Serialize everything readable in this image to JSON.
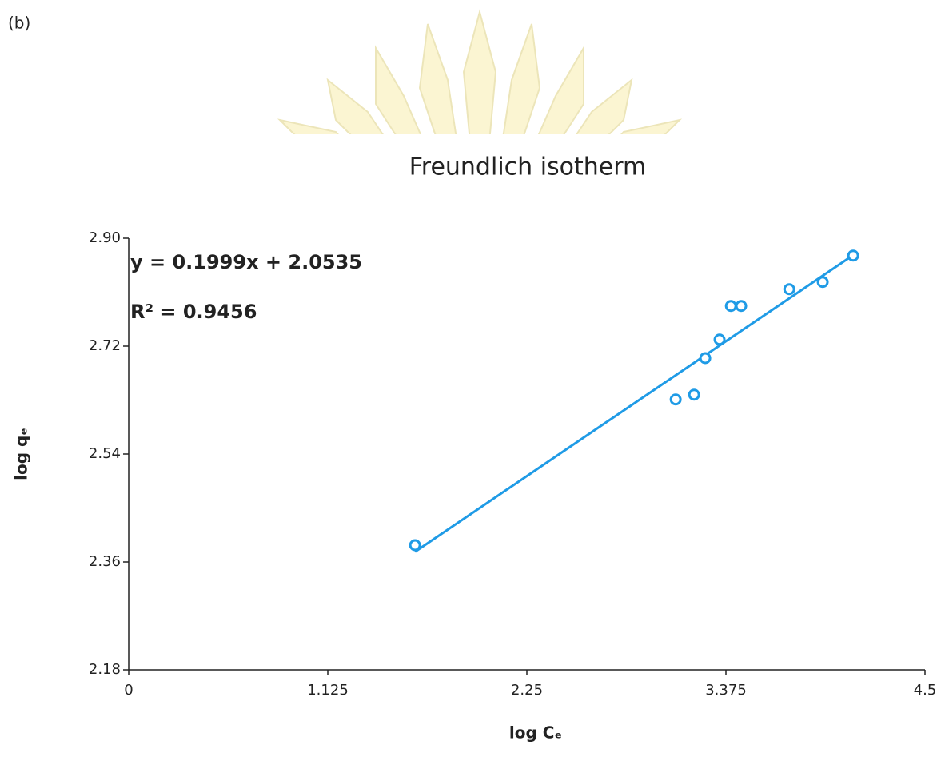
{
  "panel_label": "(b)",
  "chart_data": {
    "type": "scatter",
    "title": "Freundlich isotherm",
    "x_label": "log Cₑ",
    "y_label": "log qₑ",
    "series": [
      {
        "name": "log qe",
        "color": "#1f9be6",
        "x": [
          1.618,
          3.091,
          3.195,
          3.258,
          3.339,
          3.403,
          3.461,
          3.733,
          3.922,
          4.094
        ],
        "values": [
          2.388,
          2.631,
          2.639,
          2.7,
          2.731,
          2.787,
          2.787,
          2.815,
          2.827,
          2.871
        ]
      }
    ],
    "trendline": {
      "slope": 0.1999,
      "intercept": 2.0535,
      "equation": "y = 0.1999x + 2.0535",
      "r_squared": "R² = 0.9456"
    },
    "xlim": [
      0,
      4.5
    ],
    "xticks": [
      0,
      1.125,
      2.25,
      3.375,
      4.5
    ],
    "ylim": [
      2.18,
      2.9
    ],
    "yticks": [
      2.18,
      2.36,
      2.54,
      2.72,
      {
        "value": 2.9,
        "label": "2.90"
      }
    ]
  }
}
